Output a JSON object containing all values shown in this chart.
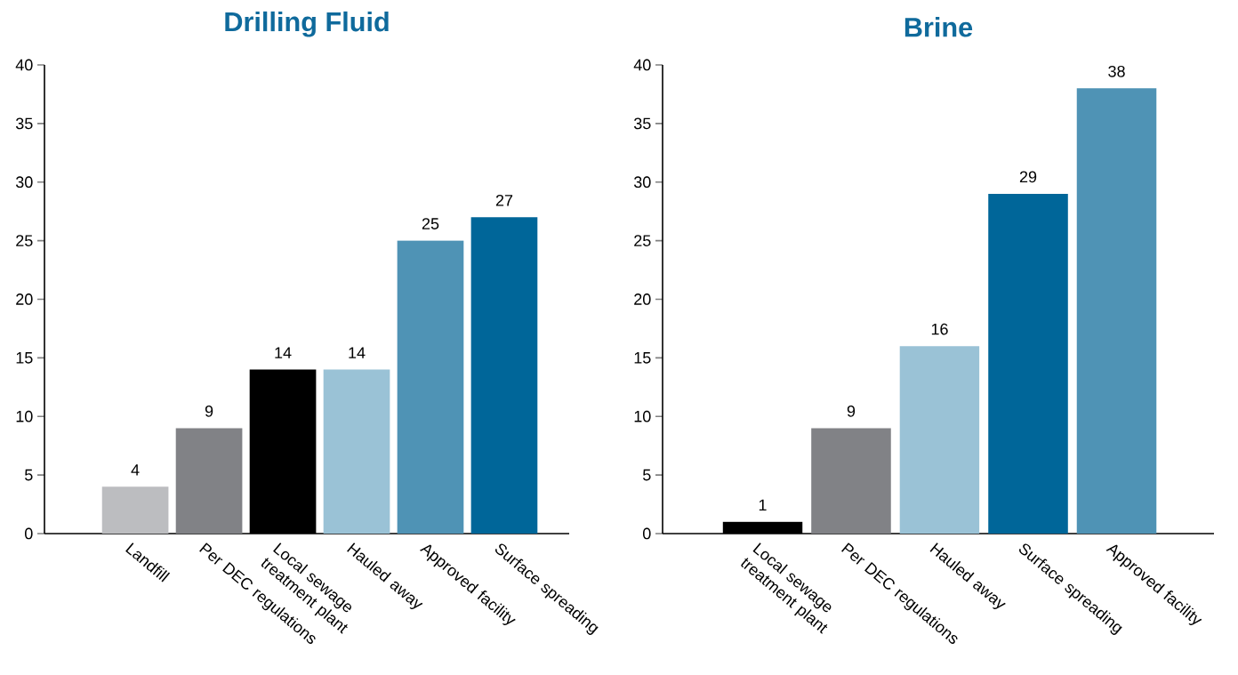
{
  "chart_data": [
    {
      "type": "bar",
      "title": "Drilling Fluid",
      "categories": [
        "Landfill",
        "Per DEC regulations",
        "Local sewage treatment plant",
        "Hauled away",
        "Approved facility",
        "Surface spreading"
      ],
      "values": [
        4,
        9,
        14,
        14,
        25,
        27
      ],
      "colors": [
        "#bcbdc0",
        "#818286",
        "#000000",
        "#9ac2d6",
        "#4f93b5",
        "#006699"
      ],
      "ylim": [
        0,
        40
      ],
      "yticks": [
        0,
        5,
        10,
        15,
        20,
        25,
        30,
        35,
        40
      ],
      "data_labels": true,
      "grid": false
    },
    {
      "type": "bar",
      "title": "Brine",
      "categories": [
        "Local sewage treatment plant",
        "Per DEC regulations",
        "Hauled away",
        "Surface spreading",
        "Approved facility"
      ],
      "values": [
        1,
        9,
        16,
        29,
        38
      ],
      "colors": [
        "#000000",
        "#818286",
        "#9ac2d6",
        "#006699",
        "#4f93b5"
      ],
      "ylim": [
        0,
        40
      ],
      "yticks": [
        0,
        5,
        10,
        15,
        20,
        25,
        30,
        35,
        40
      ],
      "data_labels": true,
      "grid": false
    }
  ]
}
